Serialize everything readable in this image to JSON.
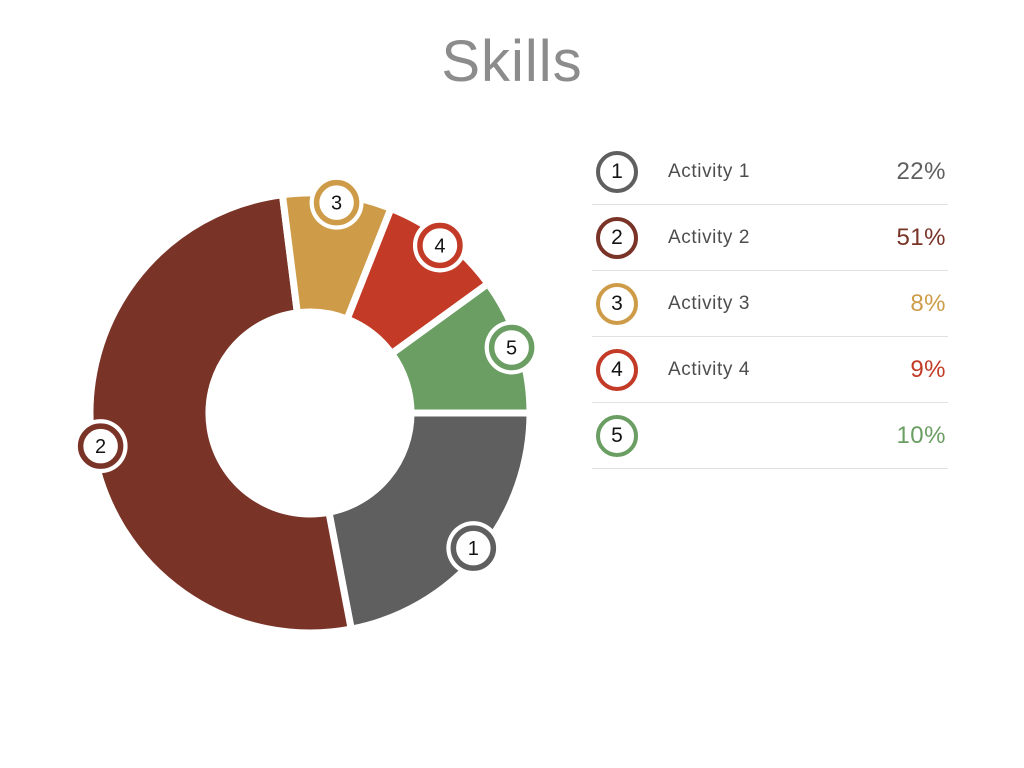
{
  "page": {
    "title": "Skills"
  },
  "chart_data": {
    "type": "pie",
    "subtype": "donut",
    "title": "Skills",
    "legend_position": "right",
    "start_angle_deg": 90,
    "inner_radius_ratio": 0.46,
    "total": 100,
    "series": [
      {
        "index": "1",
        "label": "Activity 1",
        "value": 22,
        "percent_label": "22%",
        "color": "#5F5F5F"
      },
      {
        "index": "2",
        "label": "Activity 2",
        "value": 51,
        "percent_label": "51%",
        "color": "#7A3327"
      },
      {
        "index": "3",
        "label": "Activity 3",
        "value": 8,
        "percent_label": "8%",
        "color": "#CE9C49"
      },
      {
        "index": "4",
        "label": "Activity 4",
        "value": 9,
        "percent_label": "9%",
        "color": "#C33A26"
      },
      {
        "index": "5",
        "label": "",
        "value": 10,
        "percent_label": "10%",
        "color": "#6B9E63"
      }
    ]
  }
}
